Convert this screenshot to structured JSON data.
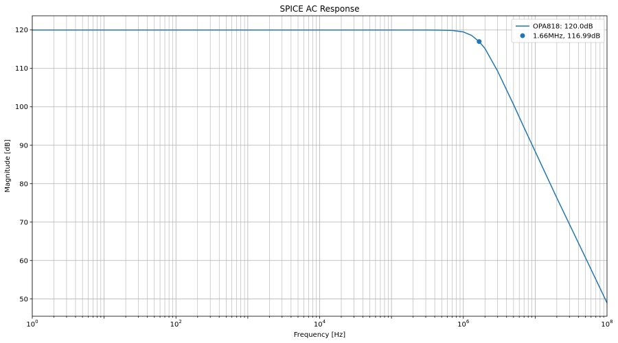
{
  "chart_data": {
    "type": "line",
    "title": "SPICE AC Response",
    "xlabel": "Frequency [Hz]",
    "ylabel": "Magnitude [dB]",
    "x_scale": "log",
    "xlim": [
      1,
      100000000
    ],
    "ylim": [
      45.5,
      123.7
    ],
    "x_major_ticks": [
      1,
      100,
      10000,
      1000000,
      100000000
    ],
    "x_tick_labels": [
      {
        "base": "10",
        "exp": "0"
      },
      {
        "base": "10",
        "exp": "2"
      },
      {
        "base": "10",
        "exp": "4"
      },
      {
        "base": "10",
        "exp": "6"
      },
      {
        "base": "10",
        "exp": "8"
      }
    ],
    "y_ticks": [
      50,
      60,
      70,
      80,
      90,
      100,
      110,
      120
    ],
    "y_tick_labels": [
      "50",
      "60",
      "70",
      "80",
      "90",
      "100",
      "110",
      "120"
    ],
    "grid": true,
    "legend_position": "top-right",
    "series": [
      {
        "name": "OPA818: 120.0dB",
        "kind": "line",
        "color": "#1f77b4",
        "points": [
          [
            1,
            120.0
          ],
          [
            10,
            120.0
          ],
          [
            100,
            120.0
          ],
          [
            1000,
            120.0
          ],
          [
            10000,
            120.0
          ],
          [
            100000,
            120.0
          ],
          [
            300000,
            119.99
          ],
          [
            500000,
            119.96
          ],
          [
            700000,
            119.88
          ],
          [
            1000000,
            119.5
          ],
          [
            1300000,
            118.6
          ],
          [
            1660000,
            116.99
          ],
          [
            2000000,
            115.2
          ],
          [
            3000000,
            109.3
          ],
          [
            5000000,
            100.6
          ],
          [
            7000000,
            94.6
          ],
          [
            10000000,
            88.4
          ],
          [
            20000000,
            76.3
          ],
          [
            50000000,
            60.8
          ],
          [
            100000000,
            49.0
          ]
        ]
      },
      {
        "name": "1.66MHz, 116.99dB",
        "kind": "scatter",
        "color": "#1f77b4",
        "points": [
          [
            1660000,
            116.99
          ]
        ]
      }
    ]
  }
}
